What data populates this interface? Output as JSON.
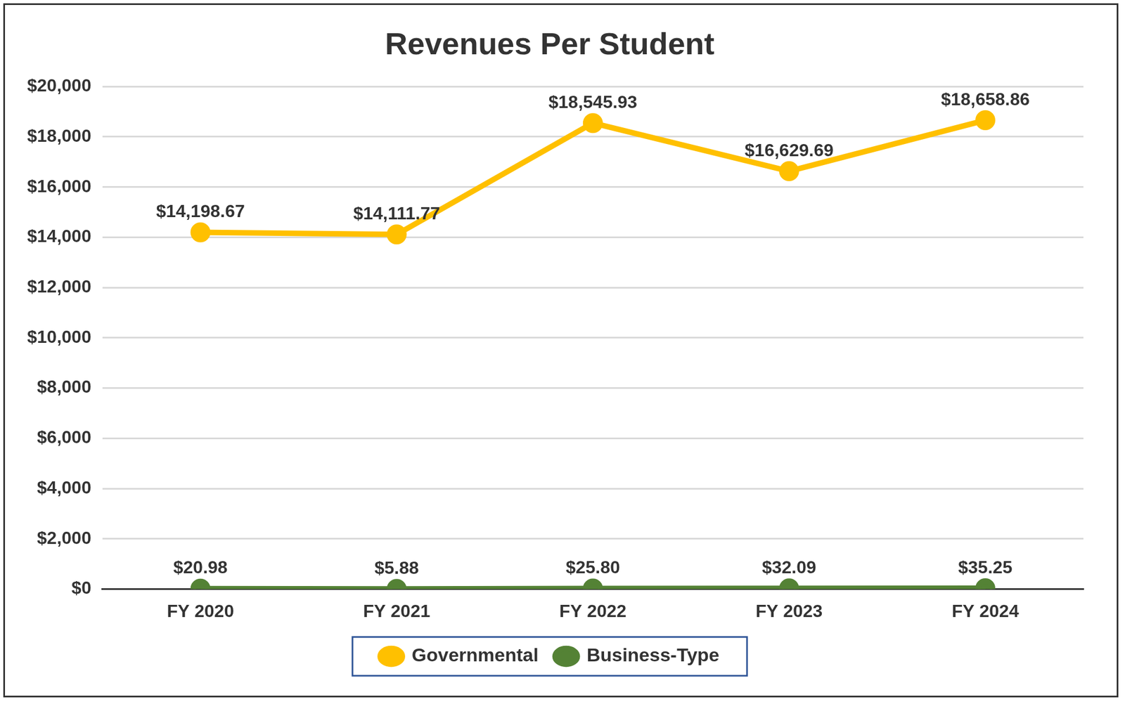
{
  "chart_data": {
    "type": "line",
    "title": "Revenues Per Student",
    "categories": [
      "FY 2020",
      "FY 2021",
      "FY 2022",
      "FY 2023",
      "FY 2024"
    ],
    "series": [
      {
        "name": "Governmental",
        "color": "#FFC000",
        "marker": "circle",
        "line_style": "solid",
        "values": [
          14198.67,
          14111.77,
          18545.93,
          16629.69,
          18658.86
        ],
        "value_labels": [
          "$14,198.67",
          "$14,111.77",
          "$18,545.93",
          "$16,629.69",
          "$18,658.86"
        ]
      },
      {
        "name": "Business-Type",
        "color": "#548235",
        "marker": "circle",
        "line_style": "solid",
        "values": [
          20.98,
          5.88,
          25.8,
          32.09,
          35.25
        ],
        "value_labels": [
          "$20.98",
          "$5.88",
          "$25.80",
          "$32.09",
          "$35.25"
        ]
      }
    ],
    "ylim": [
      0,
      20000
    ],
    "yticks": [
      {
        "value": 0,
        "label": "$0"
      },
      {
        "value": 2000,
        "label": "$2,000"
      },
      {
        "value": 4000,
        "label": "$4,000"
      },
      {
        "value": 6000,
        "label": "$6,000"
      },
      {
        "value": 8000,
        "label": "$8,000"
      },
      {
        "value": 10000,
        "label": "$10,000"
      },
      {
        "value": 12000,
        "label": "$12,000"
      },
      {
        "value": 14000,
        "label": "$14,000"
      },
      {
        "value": 16000,
        "label": "$16,000"
      },
      {
        "value": 18000,
        "label": "$18,000"
      },
      {
        "value": 20000,
        "label": "$20,000"
      }
    ],
    "grid": true,
    "legend": "bottom",
    "data_labels": true
  }
}
